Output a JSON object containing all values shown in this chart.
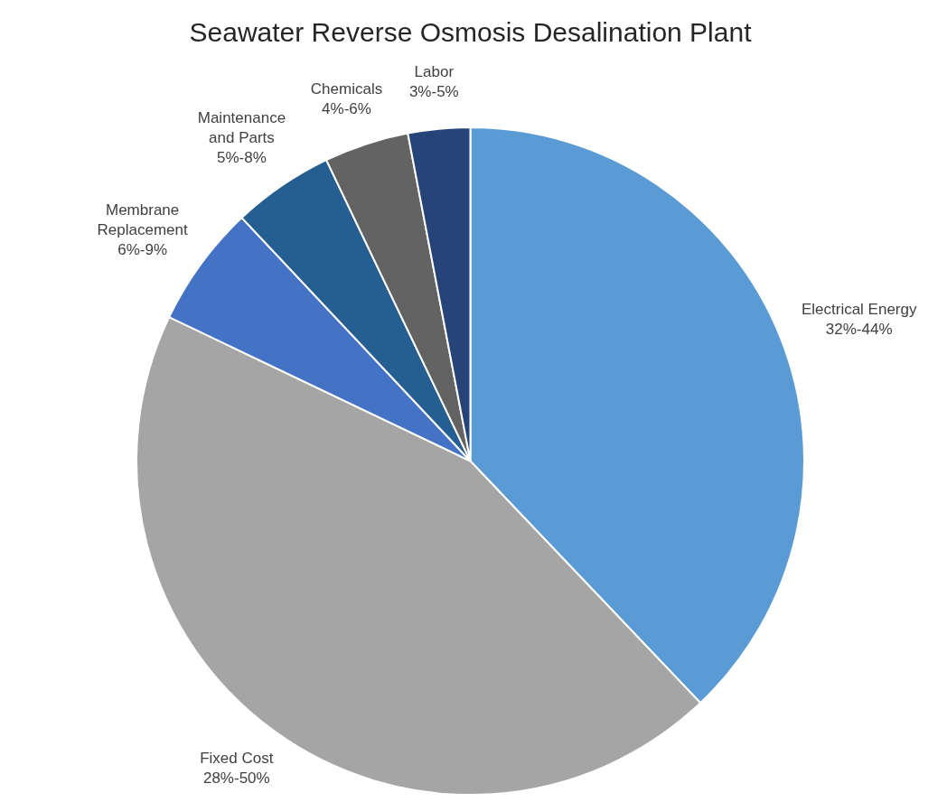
{
  "chart_data": {
    "type": "pie",
    "title": "Seawater Reverse Osmosis Desalination Plant",
    "categories": [
      "Electrical Energy 32%-44%",
      "Fixed Cost 28%-50%",
      "Membrane Replacement 6%-9%",
      "Maintenance and Parts 5%-8%",
      "Chemicals 4%-6%",
      "Labor 3%-5%"
    ],
    "values": [
      37.9,
      44.2,
      5.9,
      4.9,
      4.1,
      3.0
    ],
    "colors": [
      "#5b9bd5",
      "#a5a5a5",
      "#4472c4",
      "#255e91",
      "#636363",
      "#264478"
    ],
    "legend": false
  }
}
